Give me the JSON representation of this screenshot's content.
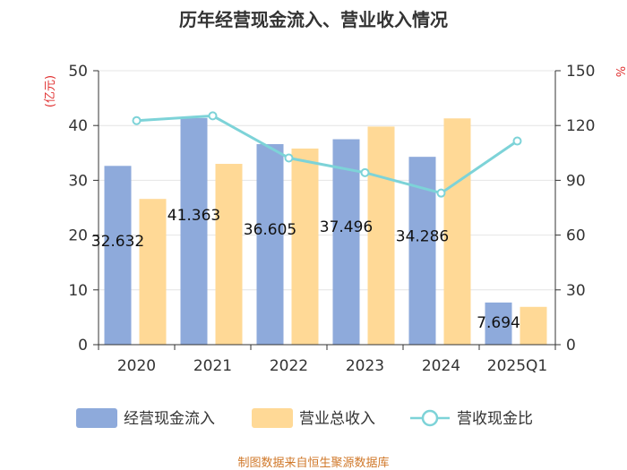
{
  "chart_data": {
    "type": "bar",
    "title": "历年经营现金流入、营业收入情况",
    "categories": [
      "2020",
      "2021",
      "2022",
      "2023",
      "2024",
      "2025Q1"
    ],
    "series": [
      {
        "name": "经营现金流入",
        "kind": "bar",
        "axis": "left",
        "color": "#8eaadb",
        "values": [
          32.632,
          41.363,
          36.605,
          37.496,
          34.286,
          7.694
        ],
        "labels": [
          "32.632",
          "41.363",
          "36.605",
          "37.496",
          "34.286",
          "7.694"
        ]
      },
      {
        "name": "营业总收入",
        "kind": "bar",
        "axis": "left",
        "color": "#ffd996",
        "values": [
          26.6,
          33.0,
          35.8,
          39.8,
          41.3,
          6.9
        ]
      },
      {
        "name": "营收现金比",
        "kind": "line",
        "axis": "right",
        "color": "#7dd3d8",
        "values": [
          122.7,
          125.3,
          102.2,
          94.2,
          83.0,
          111.5
        ]
      }
    ],
    "y_left": {
      "unit": "(亿元)",
      "ylim": [
        0,
        50
      ],
      "ticks": [
        0,
        10,
        20,
        30,
        40,
        50
      ]
    },
    "y_right": {
      "unit": "%",
      "ylim": [
        0,
        150
      ],
      "ticks": [
        0,
        30,
        60,
        90,
        120,
        150
      ]
    },
    "grid": true,
    "legend_position": "bottom",
    "source": "制图数据来自恒生聚源数据库"
  }
}
